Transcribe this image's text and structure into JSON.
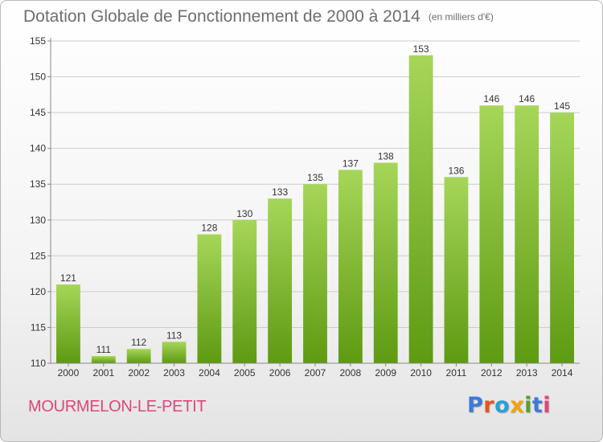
{
  "title": "Dotation Globale de Fonctionnement de 2000 à 2014",
  "unit_note": "(en milliers d'€)",
  "commune": "MOURMELON-LE-PETIT",
  "logo": {
    "text": "Proxiti",
    "colors": [
      "#3a7bd5",
      "#e8541b",
      "#2a9fd6",
      "#f0a30a",
      "#5aa02c",
      "#3a7bd5",
      "#e0457b"
    ]
  },
  "colors": {
    "bar_top": "#a6d659",
    "bar_bottom": "#5e9a12",
    "axis": "#888888",
    "grid": "#cccccc",
    "text": "#333333"
  },
  "chart_data": {
    "type": "bar",
    "categories": [
      "2000",
      "2001",
      "2002",
      "2003",
      "2004",
      "2005",
      "2006",
      "2007",
      "2008",
      "2009",
      "2010",
      "2011",
      "2012",
      "2013",
      "2014"
    ],
    "values": [
      121,
      111,
      112,
      113,
      128,
      130,
      133,
      135,
      137,
      138,
      153,
      136,
      146,
      146,
      145
    ],
    "title": "Dotation Globale de Fonctionnement de 2000 à 2014",
    "ylim": [
      110,
      155
    ],
    "yticks": [
      110,
      115,
      120,
      125,
      130,
      135,
      140,
      145,
      150,
      155
    ],
    "grid": "horizontal",
    "data_labels": true
  }
}
